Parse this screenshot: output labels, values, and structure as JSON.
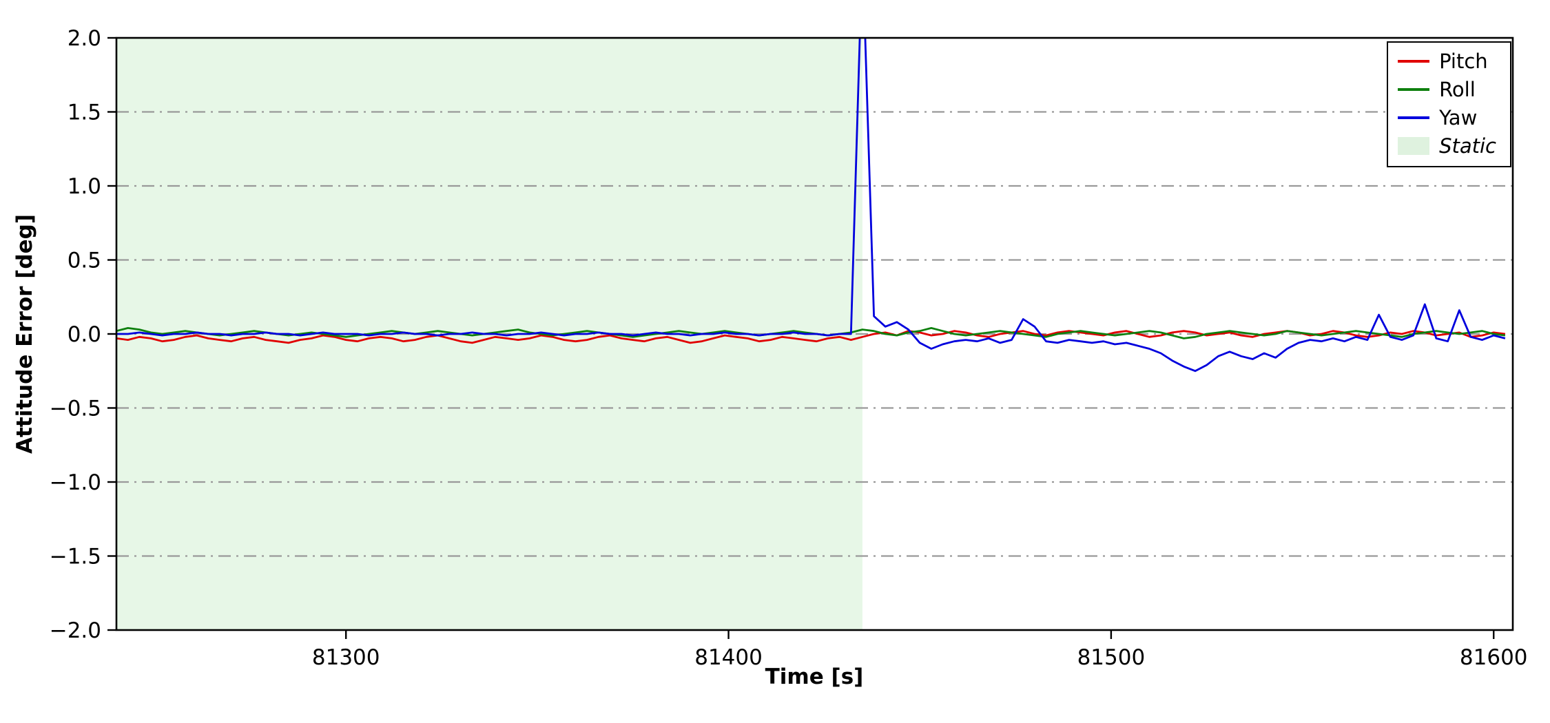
{
  "figure": {
    "background": "#ffffff",
    "axis_color": "#000000"
  },
  "chart_data": {
    "type": "line",
    "title": "",
    "xlabel": "Time [s]",
    "ylabel": "Attitude Error [deg]",
    "xlim": [
      81240,
      81605
    ],
    "ylim": [
      -2.0,
      2.0
    ],
    "grid": {
      "axis": "y",
      "style": "dashdot",
      "color": "#999999"
    },
    "x_ticks": [
      81300,
      81400,
      81500,
      81600
    ],
    "x_tick_labels": [
      "81300",
      "81400",
      "81500",
      "81600"
    ],
    "y_ticks": [
      -2.0,
      -1.5,
      -1.0,
      -0.5,
      0.0,
      0.5,
      1.0,
      1.5,
      2.0
    ],
    "y_tick_labels": [
      "−2.0",
      "−1.5",
      "−1.0",
      "−0.5",
      "0.0",
      "0.5",
      "1.0",
      "1.5",
      "2.0"
    ],
    "y_grid_ticks": [
      -1.5,
      -1.0,
      -0.5,
      0.0,
      0.5,
      1.0,
      1.5
    ],
    "static_region": {
      "label": "Static",
      "x_start": 81240,
      "x_end": 81435,
      "fill": "#e7f7e7"
    },
    "x_start": 81240,
    "x_step": 3,
    "n_points": 122,
    "series": [
      {
        "name": "Pitch",
        "color": "#e00000",
        "values": [
          -0.03,
          -0.04,
          -0.02,
          -0.03,
          -0.05,
          -0.04,
          -0.02,
          -0.01,
          -0.03,
          -0.04,
          -0.05,
          -0.03,
          -0.02,
          -0.04,
          -0.05,
          -0.06,
          -0.04,
          -0.03,
          -0.01,
          -0.02,
          -0.04,
          -0.05,
          -0.03,
          -0.02,
          -0.03,
          -0.05,
          -0.04,
          -0.02,
          -0.01,
          -0.03,
          -0.05,
          -0.06,
          -0.04,
          -0.02,
          -0.03,
          -0.04,
          -0.03,
          -0.01,
          -0.02,
          -0.04,
          -0.05,
          -0.04,
          -0.02,
          -0.01,
          -0.03,
          -0.04,
          -0.05,
          -0.03,
          -0.02,
          -0.04,
          -0.06,
          -0.05,
          -0.03,
          -0.01,
          -0.02,
          -0.03,
          -0.05,
          -0.04,
          -0.02,
          -0.03,
          -0.04,
          -0.05,
          -0.03,
          -0.02,
          -0.04,
          -0.02,
          0.0,
          0.01,
          -0.01,
          0.02,
          0.01,
          -0.01,
          0.0,
          0.02,
          0.01,
          -0.01,
          -0.02,
          0.0,
          0.01,
          0.02,
          0.0,
          -0.01,
          0.01,
          0.02,
          0.01,
          0.0,
          -0.01,
          0.01,
          0.02,
          0.0,
          -0.02,
          -0.01,
          0.01,
          0.02,
          0.01,
          -0.01,
          0.0,
          0.01,
          -0.01,
          -0.02,
          0.0,
          0.01,
          0.02,
          0.01,
          -0.01,
          0.0,
          0.02,
          0.01,
          -0.01,
          -0.02,
          -0.01,
          0.01,
          0.0,
          0.02,
          0.01,
          -0.01,
          0.0,
          0.01,
          -0.02,
          -0.01,
          0.01,
          0.0
        ]
      },
      {
        "name": "Roll",
        "color": "#0e800e",
        "values": [
          0.02,
          0.04,
          0.03,
          0.01,
          0.0,
          0.01,
          0.02,
          0.01,
          0.0,
          -0.01,
          0.0,
          0.01,
          0.02,
          0.01,
          0.0,
          -0.01,
          0.0,
          0.01,
          0.0,
          -0.01,
          -0.02,
          -0.01,
          0.0,
          0.01,
          0.02,
          0.01,
          0.0,
          0.01,
          0.02,
          0.01,
          0.0,
          -0.01,
          0.0,
          0.01,
          0.02,
          0.03,
          0.01,
          0.0,
          -0.01,
          0.0,
          0.01,
          0.02,
          0.01,
          0.0,
          -0.01,
          -0.02,
          -0.01,
          0.0,
          0.01,
          0.02,
          0.01,
          0.0,
          0.01,
          0.02,
          0.01,
          0.0,
          -0.01,
          0.0,
          0.01,
          0.02,
          0.01,
          0.0,
          -0.01,
          0.0,
          0.01,
          0.03,
          0.02,
          0.0,
          -0.01,
          0.01,
          0.02,
          0.04,
          0.02,
          0.0,
          -0.01,
          0.0,
          0.01,
          0.02,
          0.01,
          0.0,
          -0.01,
          -0.02,
          0.0,
          0.01,
          0.02,
          0.01,
          0.0,
          -0.01,
          0.0,
          0.01,
          0.02,
          0.01,
          -0.01,
          -0.03,
          -0.02,
          0.0,
          0.01,
          0.02,
          0.01,
          0.0,
          -0.01,
          0.0,
          0.02,
          0.01,
          0.0,
          -0.01,
          0.0,
          0.01,
          0.02,
          0.01,
          0.0,
          -0.01,
          -0.02,
          0.0,
          0.01,
          0.02,
          0.01,
          0.0,
          0.01,
          0.02,
          0.0,
          -0.01
        ]
      },
      {
        "name": "Yaw",
        "color": "#0000dd",
        "values": [
          0.0,
          0.0,
          0.01,
          0.0,
          -0.01,
          0.0,
          0.0,
          0.01,
          0.0,
          0.0,
          -0.01,
          0.0,
          0.0,
          0.01,
          0.0,
          0.0,
          -0.01,
          0.0,
          0.01,
          0.0,
          0.0,
          0.0,
          -0.01,
          0.0,
          0.0,
          0.01,
          0.0,
          0.0,
          -0.01,
          0.0,
          0.0,
          0.01,
          0.0,
          0.0,
          -0.01,
          0.0,
          0.0,
          0.01,
          0.0,
          -0.01,
          0.0,
          0.0,
          0.01,
          0.0,
          0.0,
          -0.01,
          0.0,
          0.01,
          0.0,
          0.0,
          -0.01,
          0.0,
          0.0,
          0.01,
          0.0,
          0.0,
          -0.01,
          0.0,
          0.0,
          0.01,
          0.0,
          0.0,
          -0.01,
          0.0,
          0.0,
          2.6,
          0.12,
          0.05,
          0.08,
          0.03,
          -0.06,
          -0.1,
          -0.07,
          -0.05,
          -0.04,
          -0.05,
          -0.03,
          -0.06,
          -0.04,
          0.1,
          0.05,
          -0.05,
          -0.06,
          -0.04,
          -0.05,
          -0.06,
          -0.05,
          -0.07,
          -0.06,
          -0.08,
          -0.1,
          -0.13,
          -0.18,
          -0.22,
          -0.25,
          -0.21,
          -0.15,
          -0.12,
          -0.15,
          -0.17,
          -0.13,
          -0.16,
          -0.1,
          -0.06,
          -0.04,
          -0.05,
          -0.03,
          -0.05,
          -0.02,
          -0.04,
          0.13,
          -0.02,
          -0.04,
          -0.01,
          0.2,
          -0.03,
          -0.05,
          0.16,
          -0.02,
          -0.04,
          -0.01,
          -0.03
        ]
      }
    ],
    "legend": {
      "position": "upper right",
      "items": [
        {
          "label": "Pitch",
          "color": "#e00000",
          "swatch": "line",
          "italic": false
        },
        {
          "label": "Roll",
          "color": "#0e800e",
          "swatch": "line",
          "italic": false
        },
        {
          "label": "Yaw",
          "color": "#0000dd",
          "swatch": "line",
          "italic": false
        },
        {
          "label": "Static",
          "color": "#dff2df",
          "swatch": "patch",
          "italic": true
        }
      ]
    }
  }
}
